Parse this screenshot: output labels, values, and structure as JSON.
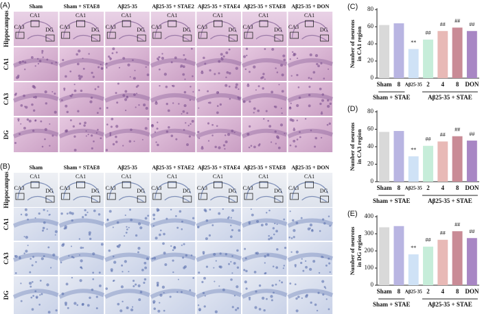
{
  "panels": [
    {
      "label": "(A)",
      "columns": [
        "Sham",
        "Sham + STAE8",
        "Aβ25-35",
        "Aβ25-35 + STAE2",
        "Aβ25-35 + STAE4",
        "Aβ25-35 + STAE8",
        "Aβ25-35 + DON"
      ],
      "rows": [
        "Hippocampus",
        "CA1",
        "CA3",
        "DG"
      ],
      "region_labels": [
        "CA1",
        "CA3",
        "DG"
      ]
    },
    {
      "label": "(B)",
      "columns": [
        "Sham",
        "Sham + STAE8",
        "Aβ25-35",
        "Aβ25-35 + STAE2",
        "Aβ25-35 + STAE4",
        "Aβ25-35 + STAE8",
        "Aβ25-35 + DON"
      ],
      "rows": [
        "Hippocampus",
        "CA1",
        "CA3",
        "DG"
      ],
      "region_labels": [
        "CA1",
        "CA3",
        "DG"
      ]
    }
  ],
  "chart_data": [
    {
      "type": "bar",
      "panel": "(C)",
      "y_label": [
        "Number of neurons",
        "in CA1 region"
      ],
      "categories": [
        "Sham",
        "8",
        "Aβ25-35",
        "2",
        "4",
        "8",
        "DON"
      ],
      "values": [
        62,
        64,
        34,
        45,
        55,
        59,
        55
      ],
      "colors": [
        "#d9d9d9",
        "#b9b5e2",
        "#cfe2f6",
        "#c6edd9",
        "#e8b9b6",
        "#c98b96",
        "#a886c4"
      ],
      "annotations": [
        null,
        null,
        "**",
        "##",
        "##",
        "##",
        "##"
      ],
      "groups": [
        "Sham + STAE",
        "Aβ25-35 + STAE"
      ],
      "ylim": [
        0,
        80
      ],
      "yticks": [
        0,
        20,
        40,
        60,
        80
      ]
    },
    {
      "type": "bar",
      "panel": "(D)",
      "y_label": [
        "Number of neurons",
        "in CA3 region"
      ],
      "categories": [
        "Sham",
        "8",
        "Aβ25-35",
        "2",
        "4",
        "8",
        "DON"
      ],
      "values": [
        57,
        58,
        29,
        41,
        46,
        52,
        47
      ],
      "colors": [
        "#d9d9d9",
        "#b9b5e2",
        "#cfe2f6",
        "#c6edd9",
        "#e8b9b6",
        "#c98b96",
        "#a886c4"
      ],
      "annotations": [
        null,
        null,
        "**",
        "##",
        "##",
        "##",
        "##"
      ],
      "groups": [
        "Sham + STAE",
        "Aβ25-35 + STAE"
      ],
      "ylim": [
        0,
        80
      ],
      "yticks": [
        0,
        20,
        40,
        60,
        80
      ]
    },
    {
      "type": "bar",
      "panel": "(E)",
      "y_label": [
        "Number of neurons",
        "in DG region"
      ],
      "categories": [
        "Sham",
        "8",
        "Aβ25-35",
        "2",
        "4",
        "8",
        "DON"
      ],
      "values": [
        338,
        345,
        180,
        225,
        265,
        315,
        275
      ],
      "colors": [
        "#d9d9d9",
        "#b9b5e2",
        "#cfe2f6",
        "#c6edd9",
        "#e8b9b6",
        "#c98b96",
        "#a886c4"
      ],
      "annotations": [
        null,
        null,
        "**",
        "##",
        "##",
        "##",
        "##"
      ],
      "groups": [
        "Sham + STAE",
        "Aβ25-35 + STAE"
      ],
      "ylim": [
        0,
        400
      ],
      "yticks": [
        0,
        100,
        200,
        300,
        400
      ]
    }
  ]
}
